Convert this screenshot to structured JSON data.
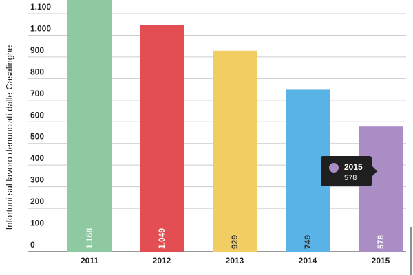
{
  "chart_data": {
    "type": "bar",
    "ylabel": "Infortuni sul lavoro denunciati dalle Casalinghe",
    "xlabel": "",
    "categories": [
      "2011",
      "2012",
      "2013",
      "2014",
      "2015"
    ],
    "values": [
      1168,
      1049,
      929,
      749,
      578
    ],
    "value_labels": [
      "1.168",
      "1.049",
      "929",
      "749",
      "578"
    ],
    "colors": [
      "#8ec9a2",
      "#e24e52",
      "#f1cd62",
      "#5ab3e6",
      "#ab8dc6"
    ],
    "label_colors": [
      "#ffffff",
      "#ffffff",
      "#333333",
      "#333333",
      "#ffffff"
    ],
    "yticks": [
      0,
      100,
      200,
      300,
      400,
      500,
      600,
      700,
      800,
      900,
      1000,
      1100
    ],
    "ytick_labels": [
      "0",
      "100",
      "200",
      "300",
      "400",
      "500",
      "600",
      "700",
      "800",
      "900",
      "1.000",
      "1.100"
    ],
    "ylim": [
      0,
      1100
    ],
    "grid": true,
    "tooltip": {
      "category": "2015",
      "value": "578",
      "color": "#ab8dc6",
      "background": "#1f1f1f"
    }
  }
}
